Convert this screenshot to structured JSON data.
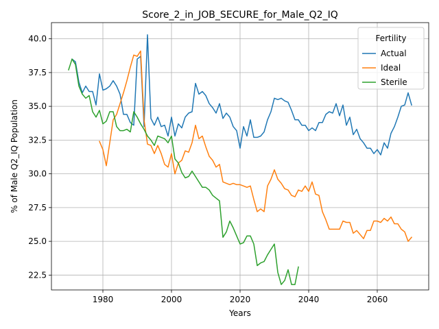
{
  "chart_data": {
    "type": "line",
    "title": "Score_2_in_JOB_SECURE_for_Male_Q2_IQ",
    "xlabel": "Years",
    "ylabel": "% of Male Q2_IQ Population",
    "xlim": [
      1965,
      2075
    ],
    "ylim": [
      21.4,
      41.2
    ],
    "x_ticks": [
      1980,
      2000,
      2020,
      2040,
      2060
    ],
    "y_ticks": [
      22.5,
      25.0,
      27.5,
      30.0,
      32.5,
      35.0,
      37.5,
      40.0
    ],
    "y_tick_labels": [
      "22.5",
      "25.0",
      "27.5",
      "30.0",
      "32.5",
      "35.0",
      "37.5",
      "40.0"
    ],
    "grid": true,
    "legend": {
      "title": "Fertility",
      "placement": "top-right"
    },
    "series": [
      {
        "name": "Actual",
        "color": "#1f77b4",
        "x_start": 1971,
        "values": [
          38.5,
          38.3,
          36.8,
          36.0,
          36.5,
          36.1,
          36.1,
          35.1,
          37.4,
          36.2,
          36.3,
          36.5,
          36.9,
          36.5,
          35.9,
          34.4,
          34.4,
          33.8,
          33.6,
          38.5,
          38.7,
          33.5,
          40.3,
          34.1,
          33.6,
          34.2,
          33.5,
          33.6,
          32.8,
          34.2,
          32.8,
          33.7,
          33.4,
          34.2,
          34.5,
          34.6,
          36.7,
          35.9,
          36.1,
          35.8,
          35.2,
          34.9,
          34.5,
          35.2,
          34.1,
          34.5,
          34.2,
          33.5,
          33.2,
          31.9,
          33.5,
          32.8,
          34.0,
          32.7,
          32.7,
          32.8,
          33.1,
          34.0,
          34.6,
          35.6,
          35.5,
          35.6,
          35.4,
          35.3,
          34.7,
          34.0,
          34.0,
          33.6,
          33.6,
          33.2,
          33.4,
          33.2,
          33.8,
          33.8,
          34.4,
          34.6,
          34.5,
          35.2,
          34.3,
          35.1,
          33.6,
          34.2,
          32.9,
          33.3,
          32.6,
          32.3,
          31.9,
          31.9,
          31.5,
          31.8,
          31.4,
          32.3,
          31.9,
          33.0,
          33.5,
          34.2,
          35.0,
          35.1,
          36.0,
          35.1
        ]
      },
      {
        "name": "Ideal",
        "color": "#ff7f0e",
        "x_start": 1979,
        "values": [
          32.4,
          31.8,
          30.6,
          32.3,
          34.0,
          34.4,
          35.2,
          36.0,
          36.9,
          37.9,
          38.8,
          38.7,
          39.1,
          34.0,
          32.2,
          32.1,
          31.5,
          32.1,
          31.5,
          30.7,
          30.5,
          31.5,
          30.0,
          30.8,
          31.0,
          31.7,
          31.6,
          32.3,
          33.6,
          32.6,
          32.8,
          32.0,
          31.3,
          31.0,
          30.5,
          30.7,
          29.4,
          29.3,
          29.2,
          29.3,
          29.2,
          29.2,
          29.1,
          29.0,
          29.1,
          28.1,
          27.2,
          27.4,
          27.2,
          29.1,
          29.6,
          30.3,
          29.6,
          29.3,
          28.9,
          28.8,
          28.4,
          28.3,
          28.8,
          28.7,
          29.1,
          28.7,
          29.4,
          28.5,
          28.4,
          27.2,
          26.6,
          25.9,
          25.9,
          25.9,
          25.9,
          26.5,
          26.4,
          26.4,
          25.6,
          25.8,
          25.5,
          25.2,
          25.8,
          25.8,
          26.5,
          26.5,
          26.4,
          26.7,
          26.5,
          26.8,
          26.3,
          26.3,
          25.9,
          25.7,
          25.0,
          25.3
        ]
      },
      {
        "name": "Sterile",
        "color": "#2ca02c",
        "x_start": 1970,
        "values": [
          37.7,
          38.5,
          38.1,
          36.5,
          35.9,
          35.6,
          35.8,
          34.6,
          34.2,
          34.7,
          33.7,
          33.9,
          34.6,
          34.6,
          33.5,
          33.2,
          33.2,
          33.3,
          33.1,
          34.6,
          34.2,
          33.7,
          33.3,
          32.8,
          32.5,
          32.1,
          32.8,
          32.7,
          32.6,
          32.3,
          32.8,
          31.1,
          30.8,
          30.1,
          29.7,
          29.8,
          30.2,
          29.8,
          29.4,
          29.0,
          29.0,
          28.8,
          28.4,
          28.2,
          28.0,
          25.3,
          25.7,
          26.5,
          26.0,
          25.4,
          24.8,
          24.9,
          25.4,
          25.4,
          24.8,
          23.2,
          23.4,
          23.5,
          24.0,
          24.4,
          24.8,
          22.7,
          21.8,
          22.1,
          22.9,
          21.8,
          21.8,
          23.1
        ]
      }
    ]
  }
}
